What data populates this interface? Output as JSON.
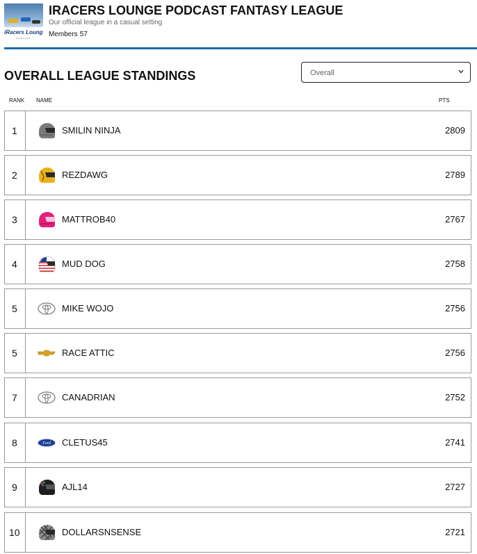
{
  "league": {
    "logo_text": "iRacers Lounge",
    "logo_subtext": "PODCAST",
    "title": "IRACERS LOUNGE PODCAST FANTASY LEAGUE",
    "description": "Our official league in a casual setting",
    "members_label": "Members",
    "members_count": "57"
  },
  "standings": {
    "title": "OVERALL LEAGUE STANDINGS",
    "filter_value": "Overall",
    "columns": {
      "rank": "RANK",
      "name": "NAME",
      "pts": "PTS"
    },
    "rows": [
      {
        "rank": "1",
        "name": "SMILIN NINJA",
        "pts": "2809",
        "icon": "helmet-icon"
      },
      {
        "rank": "2",
        "name": "REZDAWG",
        "pts": "2789",
        "icon": "helmet-icon"
      },
      {
        "rank": "3",
        "name": "MATTROB40",
        "pts": "2767",
        "icon": "helmet-icon"
      },
      {
        "rank": "4",
        "name": "MUD DOG",
        "pts": "2758",
        "icon": "helmet-icon"
      },
      {
        "rank": "5",
        "name": "MIKE WOJO",
        "pts": "2756",
        "icon": "toyota-logo-icon"
      },
      {
        "rank": "5",
        "name": "RACE ATTIC",
        "pts": "2756",
        "icon": "chevrolet-logo-icon"
      },
      {
        "rank": "7",
        "name": "CANADRIAN",
        "pts": "2752",
        "icon": "toyota-logo-icon"
      },
      {
        "rank": "8",
        "name": "CLETUS45",
        "pts": "2741",
        "icon": "ford-logo-icon"
      },
      {
        "rank": "9",
        "name": "AJL14",
        "pts": "2727",
        "icon": "helmet-icon"
      },
      {
        "rank": "10",
        "name": "DOLLARSNSENSE",
        "pts": "2721",
        "icon": "helmet-icon"
      }
    ]
  },
  "colors": {
    "accent_rule": "#1b6fa8",
    "row_border": "#9a9a9a"
  }
}
